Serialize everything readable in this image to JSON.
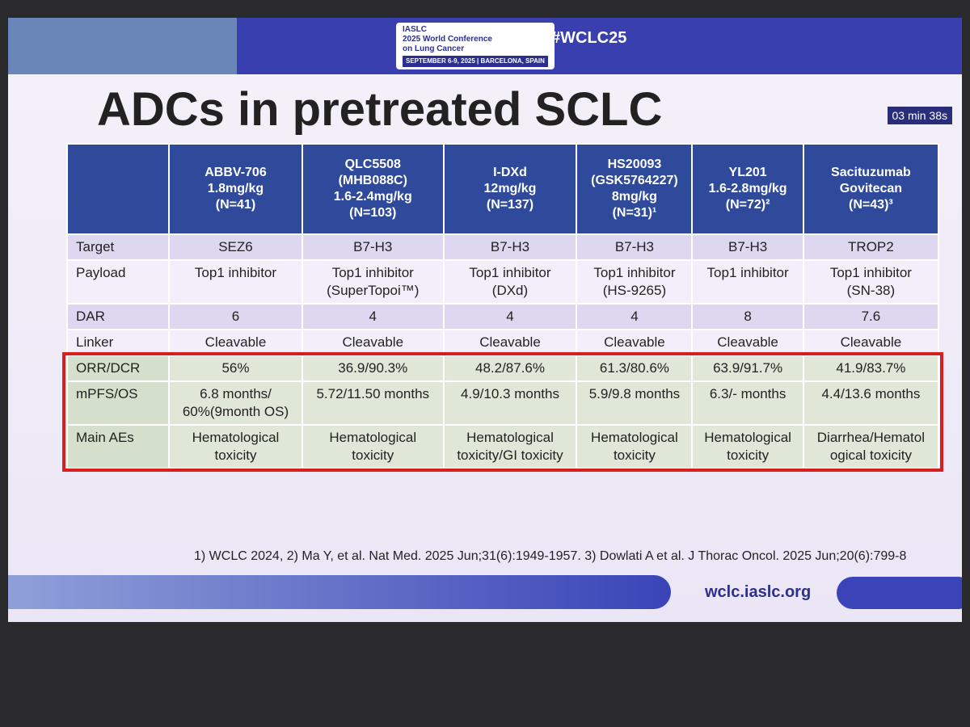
{
  "header": {
    "org": "IASLC",
    "conference": [
      "2025 World Conference",
      "on Lung Cancer"
    ],
    "dates": "SEPTEMBER 6-9, 2025 | BARCELONA, SPAIN",
    "hashtag": "#WCLC25",
    "timer": "03 min 38s"
  },
  "title": "ADCs in pretreated SCLC",
  "table": {
    "columns": [
      [
        "ABBV-706",
        "1.8mg/kg",
        "(N=41)"
      ],
      [
        "QLC5508",
        "(MHB088C)",
        "1.6-2.4mg/kg",
        "(N=103)"
      ],
      [
        "I-DXd",
        "12mg/kg",
        "(N=137)"
      ],
      [
        "HS20093",
        "(GSK5764227)",
        "8mg/kg",
        "(N=31)¹"
      ],
      [
        "YL201",
        "1.6-2.8mg/kg",
        "(N=72)²"
      ],
      [
        "Sacituzumab",
        "Govitecan",
        "(N=43)³"
      ]
    ],
    "rows": [
      {
        "label": "Target",
        "cells": [
          [
            "SEZ6"
          ],
          [
            "B7-H3"
          ],
          [
            "B7-H3"
          ],
          [
            "B7-H3"
          ],
          [
            "B7-H3"
          ],
          [
            "TROP2"
          ]
        ]
      },
      {
        "label": "Payload",
        "cells": [
          [
            "Top1 inhibitor"
          ],
          [
            "Top1 inhibitor",
            "(SuperTopoi™)"
          ],
          [
            "Top1 inhibitor",
            "(DXd)"
          ],
          [
            "Top1 inhibitor",
            "(HS-9265)"
          ],
          [
            "Top1 inhibitor"
          ],
          [
            "Top1 inhibitor",
            "(SN-38)"
          ]
        ]
      },
      {
        "label": "DAR",
        "cells": [
          [
            "6"
          ],
          [
            "4"
          ],
          [
            "4"
          ],
          [
            "4"
          ],
          [
            "8"
          ],
          [
            "7.6"
          ]
        ]
      },
      {
        "label": "Linker",
        "cells": [
          [
            "Cleavable"
          ],
          [
            "Cleavable"
          ],
          [
            "Cleavable"
          ],
          [
            "Cleavable"
          ],
          [
            "Cleavable"
          ],
          [
            "Cleavable"
          ]
        ]
      },
      {
        "label": "ORR/DCR",
        "cells": [
          [
            "56%"
          ],
          [
            "36.9/90.3%"
          ],
          [
            "48.2/87.6%"
          ],
          [
            "61.3/80.6%"
          ],
          [
            "63.9/91.7%"
          ],
          [
            "41.9/83.7%"
          ]
        ]
      },
      {
        "label": "mPFS/OS",
        "cells": [
          [
            "6.8 months/",
            "60%(9month OS)"
          ],
          [
            "5.72/11.50 months"
          ],
          [
            "4.9/10.3 months"
          ],
          [
            "5.9/9.8 months"
          ],
          [
            "6.3/- months"
          ],
          [
            "4.4/13.6 months"
          ]
        ]
      },
      {
        "label": "Main AEs",
        "cells": [
          [
            "Hematological",
            "toxicity"
          ],
          [
            "Hematological",
            "toxicity"
          ],
          [
            "Hematological",
            "toxicity/GI toxicity"
          ],
          [
            "Hematological",
            "toxicity"
          ],
          [
            "Hematological",
            "toxicity"
          ],
          [
            "Diarrhea/Hematol",
            "ogical toxicity"
          ]
        ]
      }
    ]
  },
  "footnote": "1) WCLC 2024, 2) Ma Y, et al. Nat Med. 2025 Jun;31(6):1949-1957. 3) Dowlati A  et al. J Thorac Oncol. 2025 Jun;20(6):799-8",
  "url": "wclc.iaslc.org"
}
